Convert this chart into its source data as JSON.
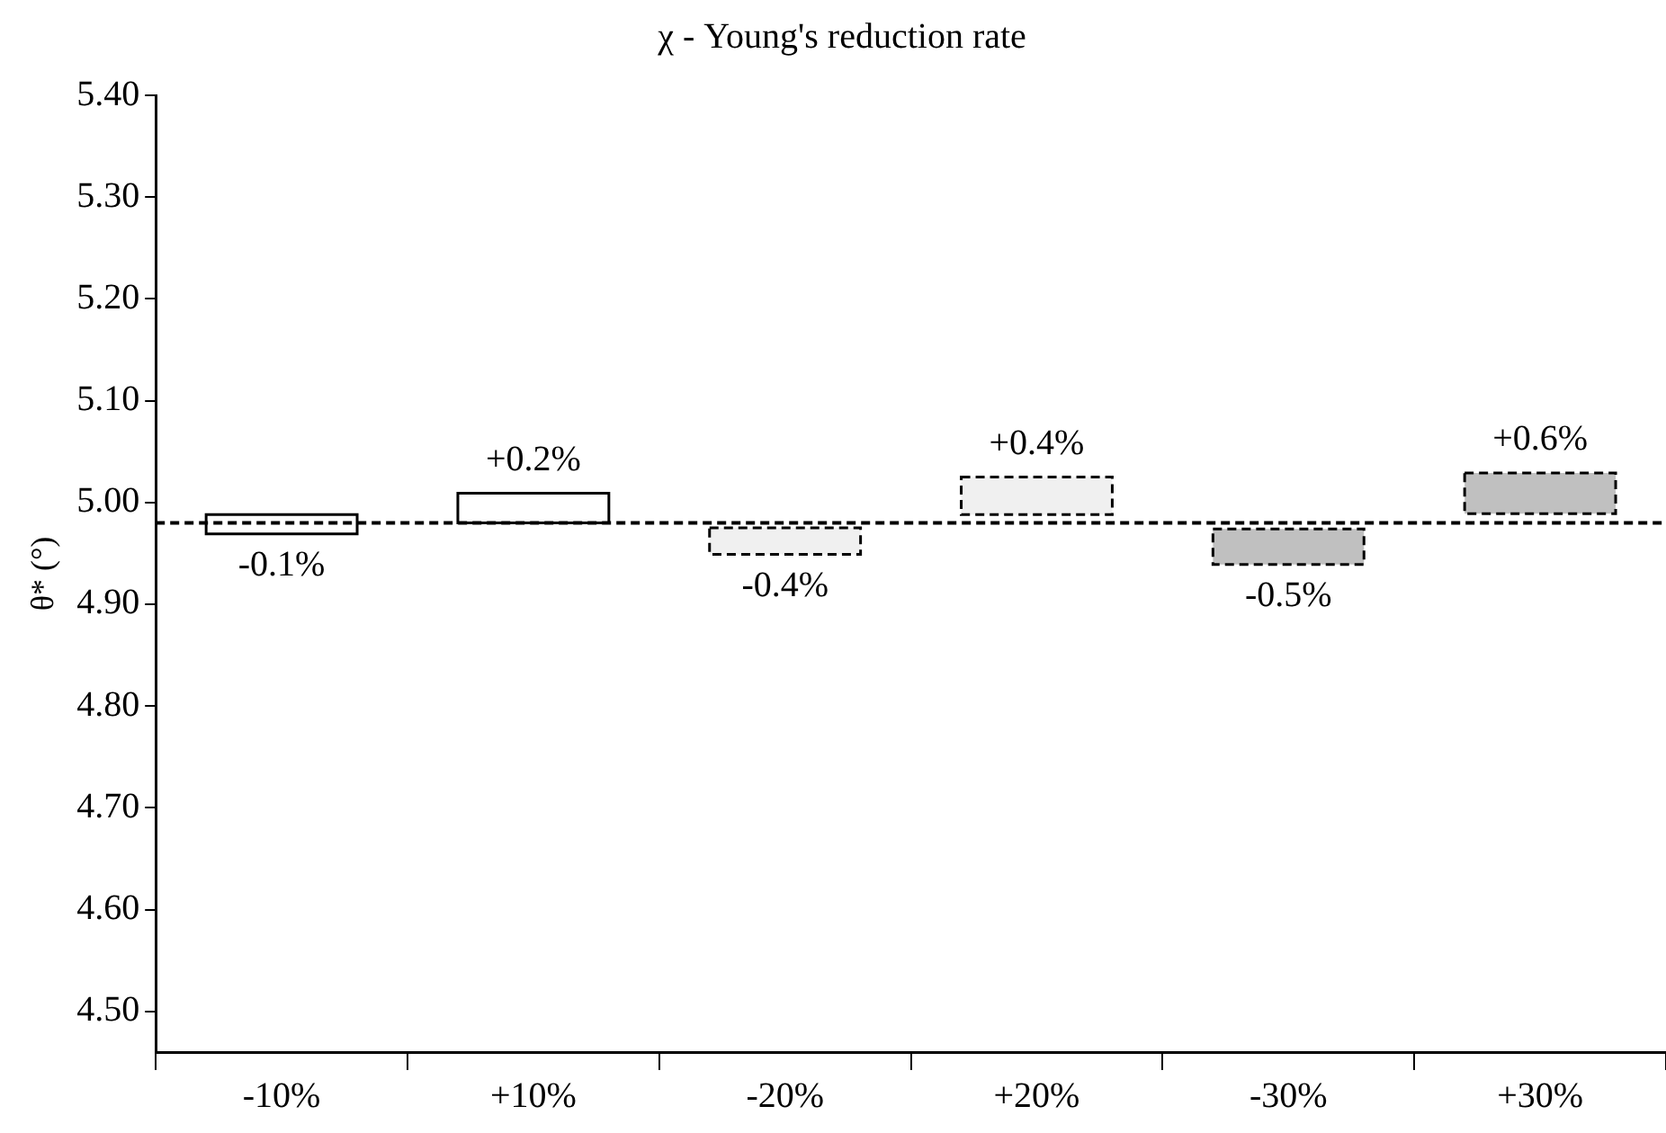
{
  "chart_data": {
    "type": "bar",
    "title": "χ - Young's reduction rate",
    "ylabel": "θ* (°)",
    "categories": [
      "-10%",
      "+10%",
      "-20%",
      "+20%",
      "-30%",
      "+30%"
    ],
    "series": [
      {
        "color": "#ffffff",
        "line_style": "solid",
        "base": [
          4.969,
          4.98,
          null,
          null,
          null,
          null
        ],
        "values": [
          0.019,
          0.029,
          null,
          null,
          null,
          null
        ]
      },
      {
        "color": "#f0f0f0",
        "line_style": "dashed",
        "base": [
          null,
          null,
          4.949,
          4.988,
          null,
          null
        ],
        "values": [
          null,
          null,
          0.026,
          0.037,
          null,
          null
        ]
      },
      {
        "color": "#c0c0c0",
        "line_style": "dashed",
        "base": [
          null,
          null,
          null,
          null,
          4.939,
          4.989
        ],
        "values": [
          null,
          null,
          null,
          null,
          0.035,
          0.04
        ]
      }
    ],
    "ylim": [
      4.46,
      5.4
    ],
    "yticks": [
      {
        "value": 4.5,
        "label": "4.50"
      },
      {
        "value": 4.6,
        "label": "4.60"
      },
      {
        "value": 4.7,
        "label": "4.70"
      },
      {
        "value": 4.8,
        "label": "4.80"
      },
      {
        "value": 4.9,
        "label": "4.90"
      },
      {
        "value": 5.0,
        "label": "5.00"
      },
      {
        "value": 5.1,
        "label": "5.10"
      },
      {
        "value": 5.2,
        "label": "5.20"
      },
      {
        "value": 5.3,
        "label": "5.30"
      },
      {
        "value": 5.4,
        "label": "5.40"
      }
    ],
    "annotations": [
      "-0.1%",
      "+0.2%",
      "-0.4%",
      "+0.4%",
      "-0.5%",
      "+0.6%"
    ],
    "ref_lines": [
      {
        "axis": "y",
        "value": 4.98,
        "line_style": "dashed",
        "color": "#000000"
      }
    ],
    "grid": false,
    "legend": false
  }
}
